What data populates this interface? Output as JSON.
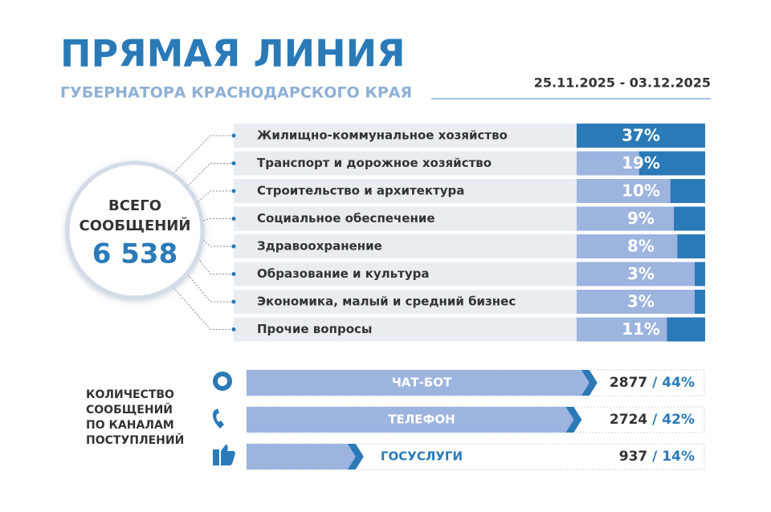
{
  "header": {
    "title": "ПРЯМАЯ ЛИНИЯ",
    "subtitle": "ГУБЕРНАТОРА КРАСНОДАРСКОГО КРАЯ",
    "date_range": "25.11.2025 - 03.12.2025"
  },
  "total": {
    "label_lines": [
      "ВСЕГО",
      "СООБЩЕНИЙ"
    ],
    "value": "6 538"
  },
  "topics": [
    {
      "name": "Жилищно-коммунальное хозяйство",
      "value": 37,
      "value_label": "37%"
    },
    {
      "name": "Транспорт и дорожное хозяйство",
      "value": 19,
      "value_label": "19%"
    },
    {
      "name": "Строительство и архитектура",
      "value": 10,
      "value_label": "10%"
    },
    {
      "name": "Социальное обеспечение",
      "value": 9,
      "value_label": "9%"
    },
    {
      "name": "Здравоохранение",
      "value": 8,
      "value_label": "8%"
    },
    {
      "name": "Образование и культура",
      "value": 3,
      "value_label": "3%"
    },
    {
      "name": "Экономика, малый и средний бизнес",
      "value": 3,
      "value_label": "3%"
    },
    {
      "name": "Прочие вопросы",
      "value": 11,
      "value_label": "11%"
    }
  ],
  "channels": {
    "label_lines": [
      "КОЛИЧЕСТВО",
      "СООБЩЕНИЙ",
      "ПО КАНАЛАМ",
      "ПОСТУПЛЕНИЙ"
    ],
    "items": [
      {
        "name": "ЧАТ-БОТ",
        "count": 2877,
        "share": 44,
        "share_label": "44%"
      },
      {
        "name": "ТЕЛЕФОН",
        "count": 2724,
        "share": 42,
        "share_label": "42%"
      },
      {
        "name": "ГОСУСЛУГИ",
        "count": 937,
        "share": 14,
        "share_label": "14%"
      }
    ]
  }
}
